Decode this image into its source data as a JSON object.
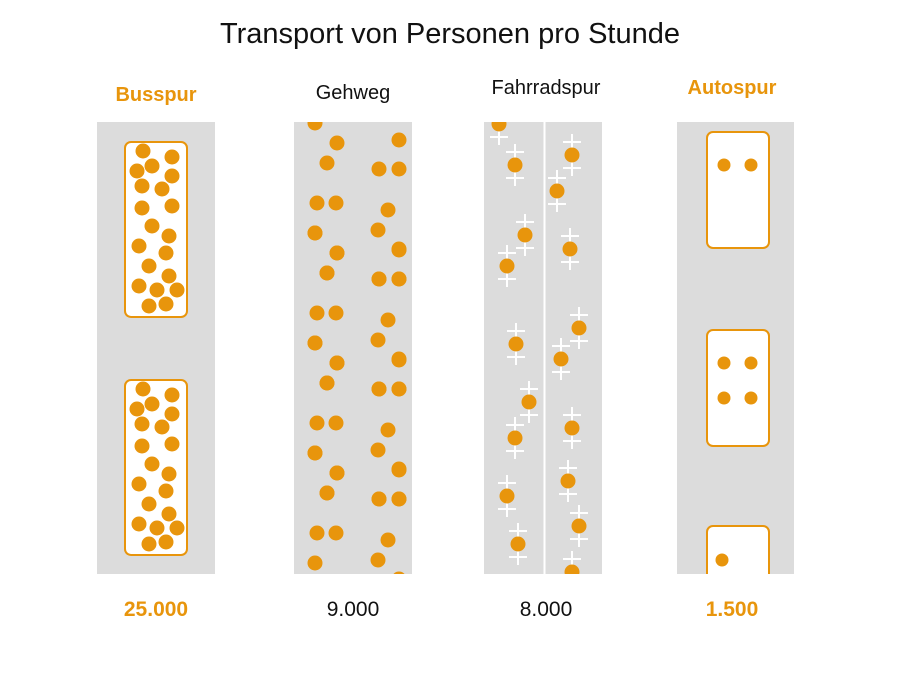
{
  "colors": {
    "accent": "#E8950C",
    "text": "#111111",
    "lane_bg": "#DCDCDC",
    "vehicle_fill": "#FFFFFF"
  },
  "chart_data": {
    "type": "pictogram",
    "title": "Transport von Personen pro Stunde",
    "categories": [
      "Busspur",
      "Gehweg",
      "Fahrradspur",
      "Autospur"
    ],
    "values": [
      25000,
      9000,
      8000,
      1500
    ],
    "value_labels": [
      "25.000",
      "9.000",
      "8.000",
      "1.500"
    ],
    "highlighted": [
      "Busspur",
      "Autospur"
    ]
  }
}
